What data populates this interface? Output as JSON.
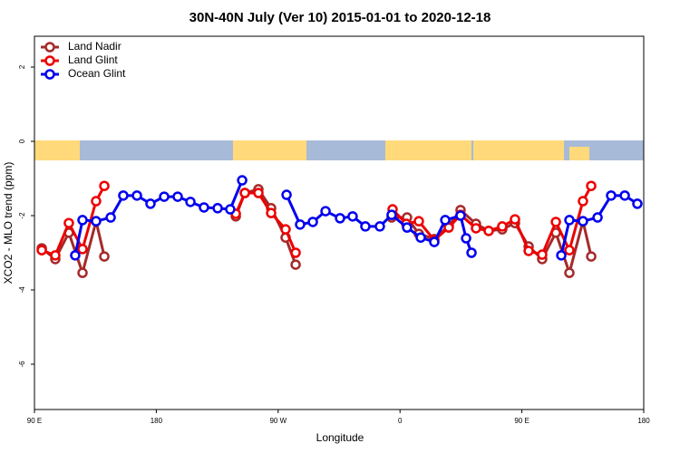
{
  "chart_data": {
    "type": "line",
    "title": "30N-40N July (Ver 10)   2015-01-01 to 2020-12-18",
    "x_label": "Longitude",
    "y_label": "XCO2 - MLO trend (ppm)",
    "xlim": [
      90,
      540
    ],
    "xticks": [
      {
        "value": 90,
        "label": "90 E"
      },
      180,
      {
        "value": 270,
        "label": "90 W"
      },
      {
        "value": 360,
        "label": "0"
      },
      {
        "value": 450,
        "label": "90 E"
      },
      {
        "value": 540,
        "label": "180"
      }
    ],
    "ylim": [
      -7.22,
      2.83
    ],
    "yticks": [
      2,
      0,
      -2,
      -4,
      -6
    ],
    "legend": "top-left",
    "series": [
      {
        "name": "Land Nadir",
        "color": "#a52a2a",
        "x": [
          95.4,
          105.4,
          115.4,
          125.5,
          135.5,
          141.6,
          null,
          238.7,
          245.4,
          255.4,
          264.8,
          275.5,
          282.9,
          null,
          353.8,
          365.2,
          373.9,
          385.3,
          396.0,
          404.7,
          416.1,
          425.5,
          435.5,
          444.9,
          455.0,
          465.0,
          475.1,
          485.1,
          495.1,
          501.2
        ],
        "values": [
          -2.88,
          -3.17,
          -2.46,
          -3.54,
          -2.15,
          -3.1,
          null,
          -2.02,
          -1.39,
          -1.29,
          -1.8,
          -2.59,
          -3.32,
          null,
          -2.05,
          -2.05,
          -2.49,
          -2.63,
          -2.27,
          -1.85,
          -2.22,
          -2.41,
          -2.37,
          -2.2,
          -2.83,
          -3.17,
          -2.46,
          -3.54,
          -2.15,
          -3.1
        ]
      },
      {
        "name": "Land Glint",
        "color": "#ee0000",
        "x": [
          95.4,
          105.4,
          115.4,
          125.5,
          135.5,
          141.6,
          null,
          238.7,
          245.4,
          255.4,
          264.8,
          275.5,
          282.9,
          null,
          354.5,
          364.6,
          373.9,
          385.3,
          396.0,
          404.7,
          416.1,
          425.5,
          435.5,
          444.9,
          455.0,
          465.0,
          475.1,
          485.1,
          495.1,
          501.2
        ],
        "values": [
          -2.93,
          -3.07,
          -2.2,
          -2.9,
          -1.61,
          -1.2,
          null,
          -1.95,
          -1.39,
          -1.39,
          -1.93,
          -2.37,
          -3.0,
          null,
          -1.83,
          -2.22,
          -2.15,
          -2.66,
          -2.32,
          -1.98,
          -2.34,
          -2.41,
          -2.29,
          -2.1,
          -2.95,
          -3.05,
          -2.17,
          -2.93,
          -1.61,
          -1.2
        ]
      },
      {
        "name": "Ocean Glint",
        "color": "#0000ee",
        "x": [
          120.1,
          125.5,
          135.5,
          146.3,
          155.6,
          165.7,
          175.7,
          185.8,
          195.8,
          205.2,
          215.2,
          225.3,
          234.6,
          243.4,
          null,
          276.2,
          286.2,
          295.6,
          305.0,
          315.7,
          325.0,
          334.4,
          345.1,
          353.8,
          365.2,
          375.3,
          385.3,
          393.4,
          404.7,
          408.8,
          412.8,
          null,
          479.1,
          485.1,
          495.1,
          505.9,
          515.9,
          526.0,
          535.3
        ],
        "values": [
          -3.07,
          -2.12,
          -2.15,
          -2.05,
          -1.46,
          -1.46,
          -1.68,
          -1.49,
          -1.49,
          -1.63,
          -1.78,
          -1.8,
          -1.83,
          -1.05,
          null,
          -1.44,
          -2.24,
          -2.17,
          -1.88,
          -2.07,
          -2.02,
          -2.29,
          -2.29,
          -1.98,
          -2.32,
          -2.59,
          -2.71,
          -2.12,
          -2.0,
          -2.61,
          -3.0,
          null,
          -3.07,
          -2.12,
          -2.15,
          -2.05,
          -1.46,
          -1.46,
          -1.68
        ]
      }
    ]
  }
}
